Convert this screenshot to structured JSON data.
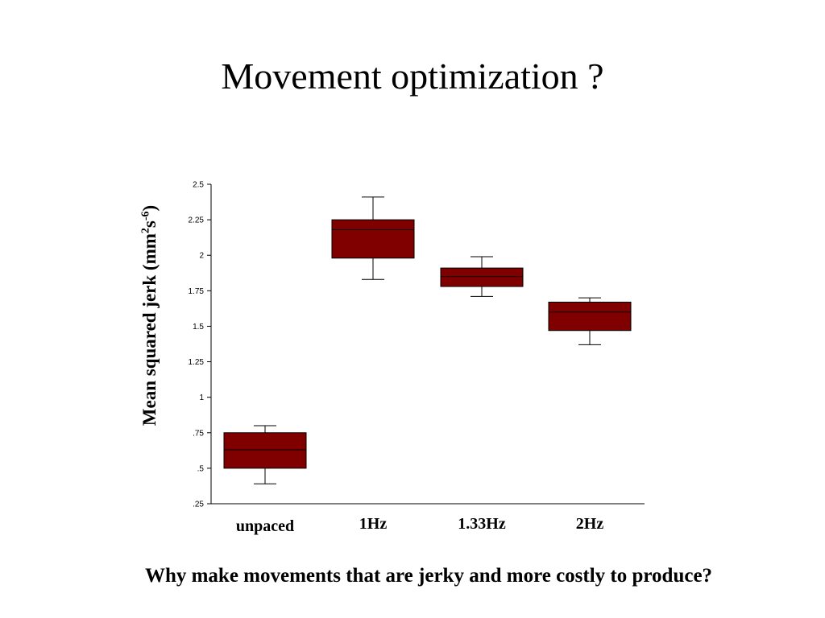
{
  "slide": {
    "title": "Movement optimization ?",
    "footer": "Why make movements that are jerky and more costly to produce?"
  },
  "chart_data": {
    "type": "boxplot",
    "ylabel_parts": [
      "Mean squared jerk (mm",
      "2",
      "s",
      "-6",
      ")"
    ],
    "ylim": [
      0.25,
      2.5
    ],
    "yticks": [
      2.5,
      2.25,
      2,
      1.75,
      1.5,
      1.25,
      1,
      0.75,
      0.5,
      0.25
    ],
    "ytick_labels": [
      "2.5",
      "2.25",
      "2",
      "1.75",
      "1.5",
      "1.25",
      "1",
      ".75",
      ".5",
      ".25"
    ],
    "categories": [
      "unpaced",
      "1Hz",
      "1.33Hz",
      "2Hz"
    ],
    "boxes": [
      {
        "category": "unpaced",
        "whisker_low": 0.39,
        "q1": 0.5,
        "median": 0.63,
        "q3": 0.75,
        "whisker_high": 0.8
      },
      {
        "category": "1Hz",
        "whisker_low": 1.83,
        "q1": 1.98,
        "median": 2.18,
        "q3": 2.25,
        "whisker_high": 2.41
      },
      {
        "category": "1.33Hz",
        "whisker_low": 1.71,
        "q1": 1.78,
        "median": 1.85,
        "q3": 1.91,
        "whisker_high": 1.99
      },
      {
        "category": "2Hz",
        "whisker_low": 1.37,
        "q1": 1.47,
        "median": 1.6,
        "q3": 1.67,
        "whisker_high": 1.7
      }
    ],
    "box_color": "#800000",
    "grid": false
  }
}
